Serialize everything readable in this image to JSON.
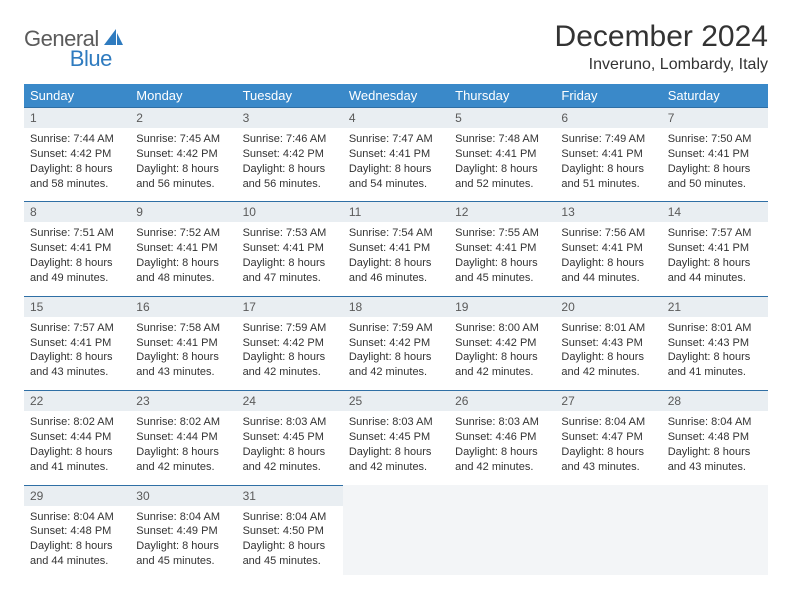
{
  "brand": {
    "word1": "General",
    "word2": "Blue",
    "word1_color": "#5b5b5b",
    "word2_color": "#2f7bbf",
    "shape_color": "#2f7bbf"
  },
  "title": "December 2024",
  "location": "Inveruno, Lombardy, Italy",
  "colors": {
    "header_bg": "#3a89c9",
    "header_text": "#ffffff",
    "daynum_bg": "#e9eef2",
    "daynum_border": "#2f6fa5",
    "body_text": "#333333",
    "page_bg": "#ffffff",
    "empty_bg": "#f3f5f7"
  },
  "weekdays": [
    "Sunday",
    "Monday",
    "Tuesday",
    "Wednesday",
    "Thursday",
    "Friday",
    "Saturday"
  ],
  "labels": {
    "sunrise": "Sunrise:",
    "sunset": "Sunset:",
    "daylight": "Daylight:"
  },
  "days": [
    {
      "n": "1",
      "sunrise": "7:44 AM",
      "sunset": "4:42 PM",
      "daylight": "8 hours and 58 minutes."
    },
    {
      "n": "2",
      "sunrise": "7:45 AM",
      "sunset": "4:42 PM",
      "daylight": "8 hours and 56 minutes."
    },
    {
      "n": "3",
      "sunrise": "7:46 AM",
      "sunset": "4:42 PM",
      "daylight": "8 hours and 56 minutes."
    },
    {
      "n": "4",
      "sunrise": "7:47 AM",
      "sunset": "4:41 PM",
      "daylight": "8 hours and 54 minutes."
    },
    {
      "n": "5",
      "sunrise": "7:48 AM",
      "sunset": "4:41 PM",
      "daylight": "8 hours and 52 minutes."
    },
    {
      "n": "6",
      "sunrise": "7:49 AM",
      "sunset": "4:41 PM",
      "daylight": "8 hours and 51 minutes."
    },
    {
      "n": "7",
      "sunrise": "7:50 AM",
      "sunset": "4:41 PM",
      "daylight": "8 hours and 50 minutes."
    },
    {
      "n": "8",
      "sunrise": "7:51 AM",
      "sunset": "4:41 PM",
      "daylight": "8 hours and 49 minutes."
    },
    {
      "n": "9",
      "sunrise": "7:52 AM",
      "sunset": "4:41 PM",
      "daylight": "8 hours and 48 minutes."
    },
    {
      "n": "10",
      "sunrise": "7:53 AM",
      "sunset": "4:41 PM",
      "daylight": "8 hours and 47 minutes."
    },
    {
      "n": "11",
      "sunrise": "7:54 AM",
      "sunset": "4:41 PM",
      "daylight": "8 hours and 46 minutes."
    },
    {
      "n": "12",
      "sunrise": "7:55 AM",
      "sunset": "4:41 PM",
      "daylight": "8 hours and 45 minutes."
    },
    {
      "n": "13",
      "sunrise": "7:56 AM",
      "sunset": "4:41 PM",
      "daylight": "8 hours and 44 minutes."
    },
    {
      "n": "14",
      "sunrise": "7:57 AM",
      "sunset": "4:41 PM",
      "daylight": "8 hours and 44 minutes."
    },
    {
      "n": "15",
      "sunrise": "7:57 AM",
      "sunset": "4:41 PM",
      "daylight": "8 hours and 43 minutes."
    },
    {
      "n": "16",
      "sunrise": "7:58 AM",
      "sunset": "4:41 PM",
      "daylight": "8 hours and 43 minutes."
    },
    {
      "n": "17",
      "sunrise": "7:59 AM",
      "sunset": "4:42 PM",
      "daylight": "8 hours and 42 minutes."
    },
    {
      "n": "18",
      "sunrise": "7:59 AM",
      "sunset": "4:42 PM",
      "daylight": "8 hours and 42 minutes."
    },
    {
      "n": "19",
      "sunrise": "8:00 AM",
      "sunset": "4:42 PM",
      "daylight": "8 hours and 42 minutes."
    },
    {
      "n": "20",
      "sunrise": "8:01 AM",
      "sunset": "4:43 PM",
      "daylight": "8 hours and 42 minutes."
    },
    {
      "n": "21",
      "sunrise": "8:01 AM",
      "sunset": "4:43 PM",
      "daylight": "8 hours and 41 minutes."
    },
    {
      "n": "22",
      "sunrise": "8:02 AM",
      "sunset": "4:44 PM",
      "daylight": "8 hours and 41 minutes."
    },
    {
      "n": "23",
      "sunrise": "8:02 AM",
      "sunset": "4:44 PM",
      "daylight": "8 hours and 42 minutes."
    },
    {
      "n": "24",
      "sunrise": "8:03 AM",
      "sunset": "4:45 PM",
      "daylight": "8 hours and 42 minutes."
    },
    {
      "n": "25",
      "sunrise": "8:03 AM",
      "sunset": "4:45 PM",
      "daylight": "8 hours and 42 minutes."
    },
    {
      "n": "26",
      "sunrise": "8:03 AM",
      "sunset": "4:46 PM",
      "daylight": "8 hours and 42 minutes."
    },
    {
      "n": "27",
      "sunrise": "8:04 AM",
      "sunset": "4:47 PM",
      "daylight": "8 hours and 43 minutes."
    },
    {
      "n": "28",
      "sunrise": "8:04 AM",
      "sunset": "4:48 PM",
      "daylight": "8 hours and 43 minutes."
    },
    {
      "n": "29",
      "sunrise": "8:04 AM",
      "sunset": "4:48 PM",
      "daylight": "8 hours and 44 minutes."
    },
    {
      "n": "30",
      "sunrise": "8:04 AM",
      "sunset": "4:49 PM",
      "daylight": "8 hours and 45 minutes."
    },
    {
      "n": "31",
      "sunrise": "8:04 AM",
      "sunset": "4:50 PM",
      "daylight": "8 hours and 45 minutes."
    }
  ],
  "layout": {
    "first_weekday_index": 0,
    "rows": 5,
    "cols": 7
  }
}
